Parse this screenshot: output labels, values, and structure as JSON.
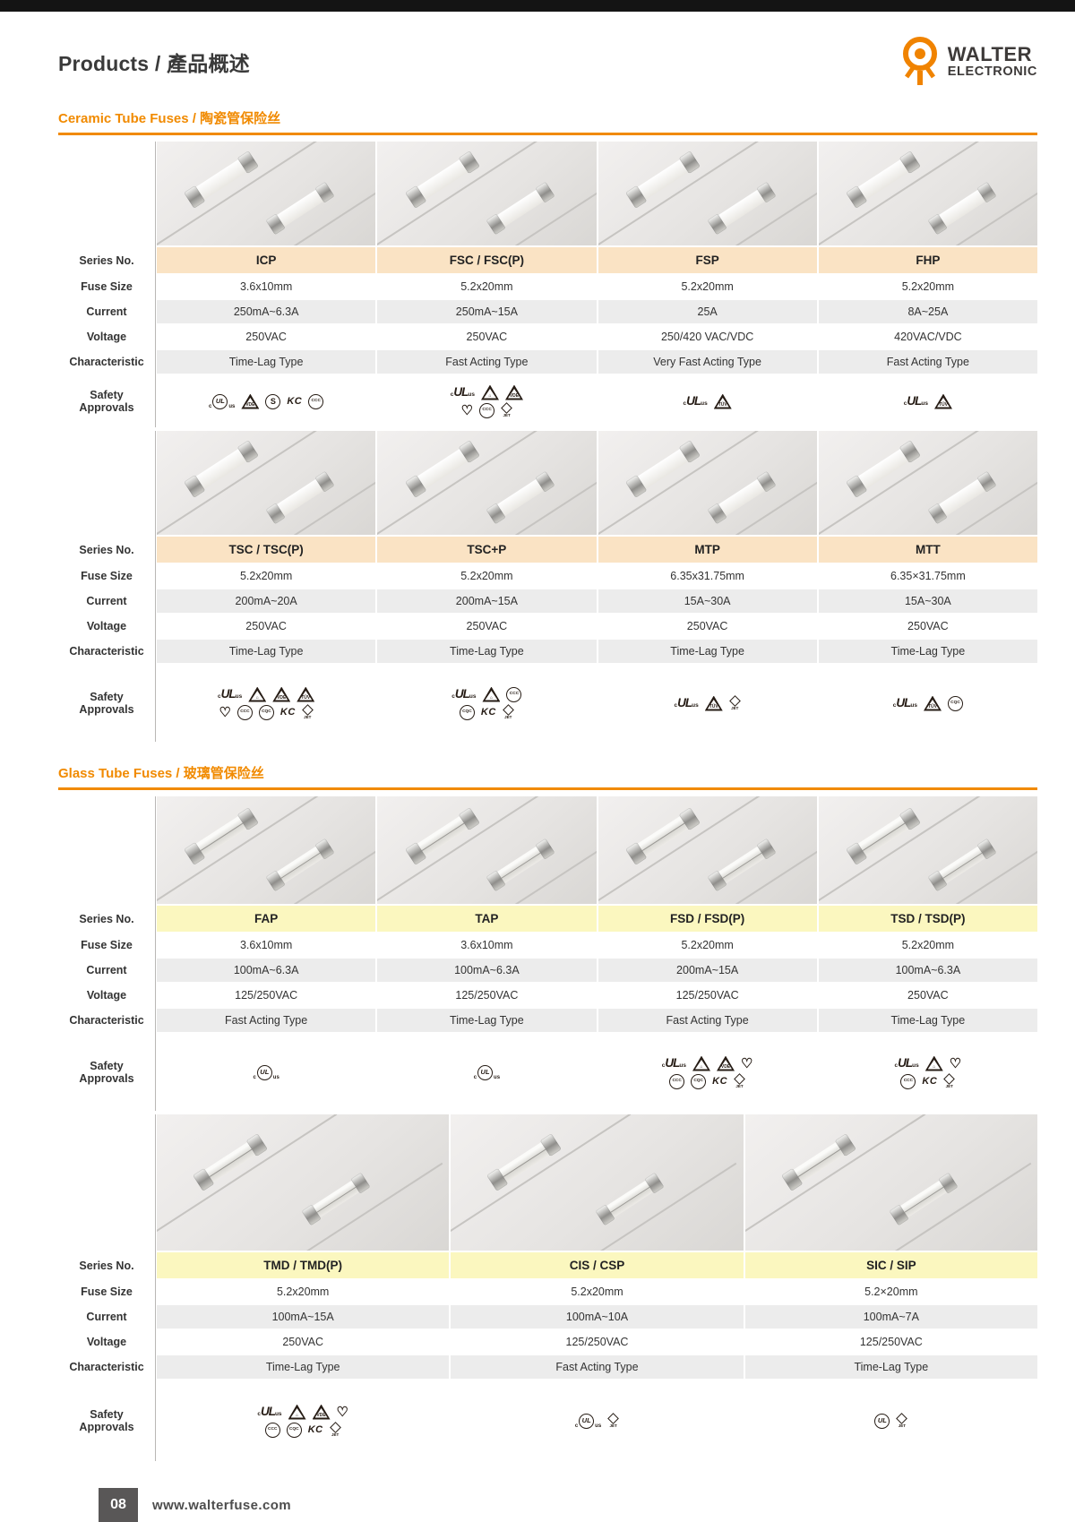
{
  "page": {
    "title": {
      "en": "Products",
      "sep": " / ",
      "zh": "產品概述"
    },
    "brand": {
      "line1": "WALTER",
      "line2": "ELECTRONIC"
    },
    "footer": {
      "page_number": "08",
      "website": "www.walterfuse.com"
    }
  },
  "colors": {
    "accent": "#f18a00",
    "logo_orange": "#f08300",
    "ceramic_header_bg": "#fae3c4",
    "glass_header_bg": "#fbf7bf",
    "row_alt": "#ececec",
    "topbar": "#141414",
    "footer_box": "#595757"
  },
  "row_labels": [
    "Series No.",
    "Fuse Size",
    "Current",
    "Voltage",
    "Characteristic",
    "Safety Approvals"
  ],
  "icon_legend": {
    "ul": {
      "shape": "ul",
      "pre": "c",
      "text": "UL",
      "post": "us",
      "name": "cULus-icon"
    },
    "ulc": {
      "shape": "ulcircle",
      "pre": "c",
      "text": "UL",
      "post": "us",
      "name": "cULus-circle-icon"
    },
    "ulp": {
      "shape": "ulcircle",
      "pre": "",
      "text": "UL",
      "post": "",
      "name": "ul-circle-icon"
    },
    "tri-vde": {
      "shape": "tri",
      "text": "VDE",
      "name": "vde-triangle-icon"
    },
    "tri-tuv": {
      "shape": "tri",
      "text": "TÜV",
      "name": "tuv-triangle-icon"
    },
    "tri-house": {
      "shape": "tri",
      "text": "⌂",
      "name": "tuv-house-icon"
    },
    "circ-s": {
      "shape": "circ",
      "text": "S",
      "name": "s-mark-icon"
    },
    "ccc": {
      "shape": "circ",
      "text": "CCC",
      "name": "ccc-icon"
    },
    "cqc": {
      "shape": "circ",
      "text": "CQC",
      "name": "cqc-icon"
    },
    "kc": {
      "shape": "kc",
      "text": "KC",
      "name": "kc-icon"
    },
    "jet": {
      "shape": "jet",
      "text": "JET",
      "name": "jet-icon"
    },
    "pse": {
      "shape": "pse",
      "text": "♡",
      "name": "pse-icon"
    }
  },
  "sections": [
    {
      "id": "ceramic",
      "title": "Ceramic Tube Fuses / 陶瓷管保险丝",
      "header_bg": "#fae3c4",
      "fuse_style": "ceramic",
      "tables": [
        {
          "photo_height": 116,
          "safety_height": 58,
          "columns": [
            {
              "series": "ICP",
              "fuse_size": "3.6x10mm",
              "current": "250mA~6.3A",
              "voltage": "250VAC",
              "characteristic": "Time-Lag Type",
              "approvals": [
                [
                  "ulc",
                  "tri-vde",
                  "circ-s",
                  "kc",
                  "ccc"
                ]
              ]
            },
            {
              "series": "FSC / FSC(P)",
              "fuse_size": "5.2x20mm",
              "current": "250mA~15A",
              "voltage": "250VAC",
              "characteristic": "Fast Acting Type",
              "approvals": [
                [
                  "ul",
                  "tri-house",
                  "tri-vde"
                ],
                [
                  "pse",
                  "ccc",
                  "jet"
                ]
              ]
            },
            {
              "series": "FSP",
              "fuse_size": "5.2x20mm",
              "current": "25A",
              "voltage": "250/420 VAC/VDC",
              "characteristic": "Very Fast Acting Type",
              "approvals": [
                [
                  "ul",
                  "tri-tuv"
                ]
              ]
            },
            {
              "series": "FHP",
              "fuse_size": "5.2x20mm",
              "current": "8A~25A",
              "voltage": "420VAC/VDC",
              "characteristic": "Fast Acting Type",
              "approvals": [
                [
                  "ul",
                  "tri-tuv"
                ]
              ]
            }
          ]
        },
        {
          "photo_height": 116,
          "safety_height": 86,
          "columns": [
            {
              "series": "TSC / TSC(P)",
              "fuse_size": "5.2x20mm",
              "current": "200mA~20A",
              "voltage": "250VAC",
              "characteristic": "Time-Lag Type",
              "approvals": [
                [
                  "ul",
                  "tri-house",
                  "tri-vde",
                  "tri-tuv"
                ],
                [
                  "pse",
                  "ccc",
                  "cqc",
                  "kc",
                  "jet"
                ]
              ]
            },
            {
              "series": "TSC+P",
              "fuse_size": "5.2x20mm",
              "current": "200mA~15A",
              "voltage": "250VAC",
              "characteristic": "Time-Lag Type",
              "approvals": [
                [
                  "ul",
                  "tri-house",
                  "ccc"
                ],
                [
                  "cqc",
                  "kc",
                  "jet"
                ]
              ]
            },
            {
              "series": "MTP",
              "fuse_size": "6.35x31.75mm",
              "current": "15A~30A",
              "voltage": "250VAC",
              "characteristic": "Time-Lag Type",
              "approvals": [
                [
                  "ul",
                  "tri-tuv",
                  "jet"
                ]
              ]
            },
            {
              "series": "MTT",
              "fuse_size": "6.35×31.75mm",
              "current": "15A~30A",
              "voltage": "250VAC",
              "characteristic": "Time-Lag Type",
              "approvals": [
                [
                  "ul",
                  "tri-tuv",
                  "cqc"
                ]
              ]
            }
          ]
        }
      ]
    },
    {
      "id": "glass",
      "title": "Glass Tube Fuses / 玻璃管保险丝",
      "header_bg": "#fbf7bf",
      "fuse_style": "glass",
      "tables": [
        {
          "photo_height": 120,
          "safety_height": 86,
          "columns": [
            {
              "series": "FAP",
              "fuse_size": "3.6x10mm",
              "current": "100mA~6.3A",
              "voltage": "125/250VAC",
              "characteristic": "Fast Acting Type",
              "approvals": [
                [
                  "ulc"
                ]
              ]
            },
            {
              "series": "TAP",
              "fuse_size": "3.6x10mm",
              "current": "100mA~6.3A",
              "voltage": "125/250VAC",
              "characteristic": "Time-Lag Type",
              "approvals": [
                [
                  "ulc"
                ]
              ]
            },
            {
              "series": "FSD / FSD(P)",
              "fuse_size": "5.2x20mm",
              "current": "200mA~15A",
              "voltage": "125/250VAC",
              "characteristic": "Fast Acting Type",
              "approvals": [
                [
                  "ul",
                  "tri-house",
                  "tri-vde",
                  "pse"
                ],
                [
                  "ccc",
                  "cqc",
                  "kc",
                  "jet"
                ]
              ]
            },
            {
              "series": "TSD / TSD(P)",
              "fuse_size": "5.2x20mm",
              "current": "100mA~6.3A",
              "voltage": "250VAC",
              "characteristic": "Time-Lag Type",
              "approvals": [
                [
                  "ul",
                  "tri-house",
                  "pse"
                ],
                [
                  "ccc",
                  "kc",
                  "jet"
                ]
              ]
            }
          ]
        },
        {
          "photo_height": 152,
          "safety_height": 90,
          "columns": [
            {
              "series": "TMD / TMD(P)",
              "fuse_size": "5.2x20mm",
              "current": "100mA~15A",
              "voltage": "250VAC",
              "characteristic": "Time-Lag Type",
              "approvals": [
                [
                  "ul",
                  "tri-house",
                  "tri-vde",
                  "pse"
                ],
                [
                  "ccc",
                  "cqc",
                  "kc",
                  "jet"
                ]
              ]
            },
            {
              "series": "CIS / CSP",
              "fuse_size": "5.2x20mm",
              "current": "100mA~10A",
              "voltage": "125/250VAC",
              "characteristic": "Fast Acting Type",
              "approvals": [
                [
                  "ulc",
                  "jet"
                ]
              ]
            },
            {
              "series": "SIC / SIP",
              "fuse_size": "5.2×20mm",
              "current": "100mA~7A",
              "voltage": "125/250VAC",
              "characteristic": "Time-Lag Type",
              "approvals": [
                [
                  "ulp",
                  "jet"
                ]
              ]
            }
          ]
        }
      ]
    }
  ]
}
